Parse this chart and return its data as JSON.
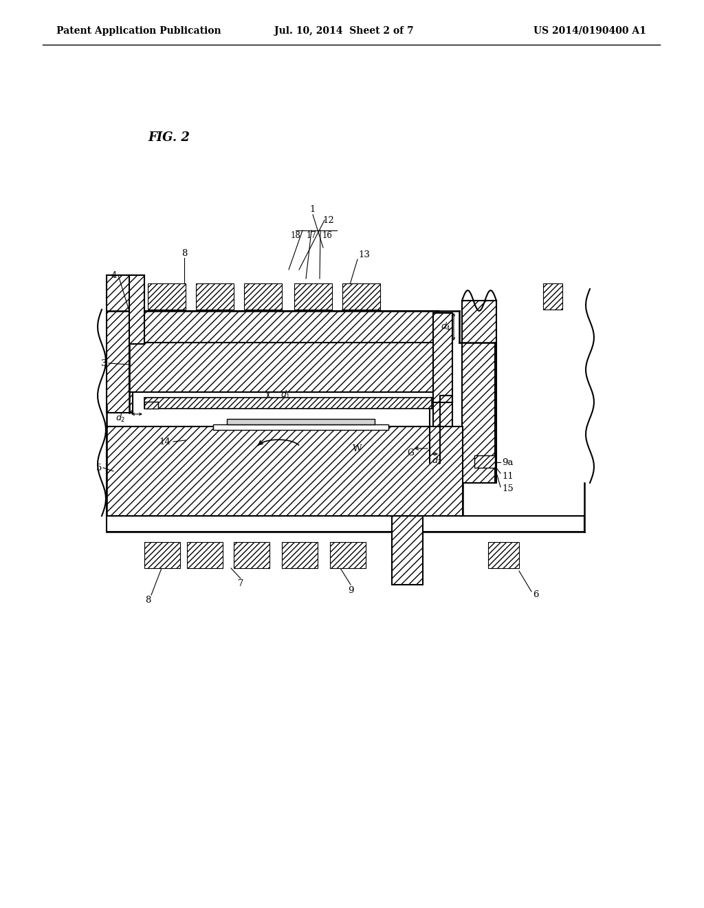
{
  "bg_color": "#ffffff",
  "header_left": "Patent Application Publication",
  "header_mid": "Jul. 10, 2014  Sheet 2 of 7",
  "header_right": "US 2014/0190400 A1",
  "fig_label": "FIG. 2"
}
